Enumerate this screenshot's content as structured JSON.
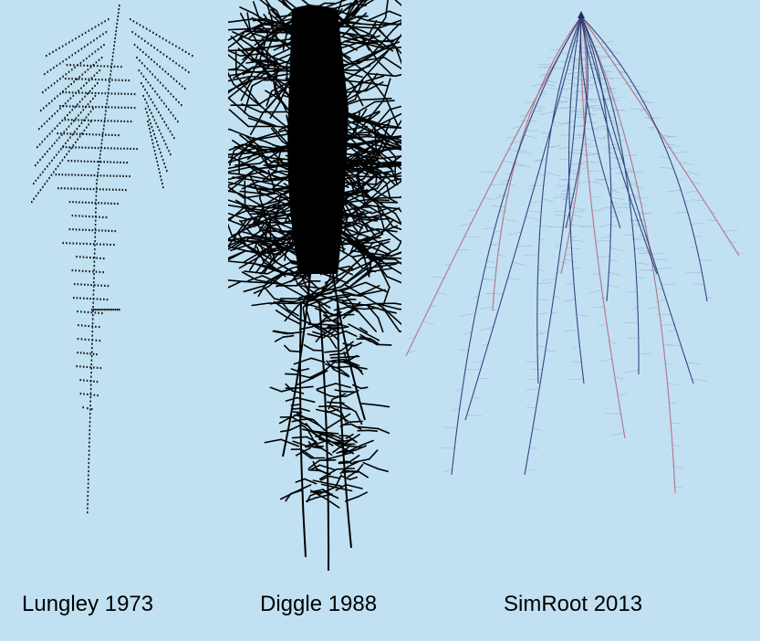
{
  "captions": {
    "lungley": "Lungley 1973",
    "diggle": "Diggle 1988",
    "simroot": "SimRoot 2013"
  },
  "colors": {
    "background": "#c1e1f3",
    "ascii_root": "#1a1a1a",
    "diggle_root": "#000000",
    "simroot_primary": "#1f2a6b",
    "simroot_secondary": "#b05a6a",
    "simroot_fine": "#8fa6c6"
  },
  "panels": [
    {
      "id": "lungley",
      "style": "ascii-character root drawing"
    },
    {
      "id": "diggle",
      "style": "dense black branching root system"
    },
    {
      "id": "simroot",
      "style": "3D rendered root architecture with fine laterals"
    }
  ]
}
